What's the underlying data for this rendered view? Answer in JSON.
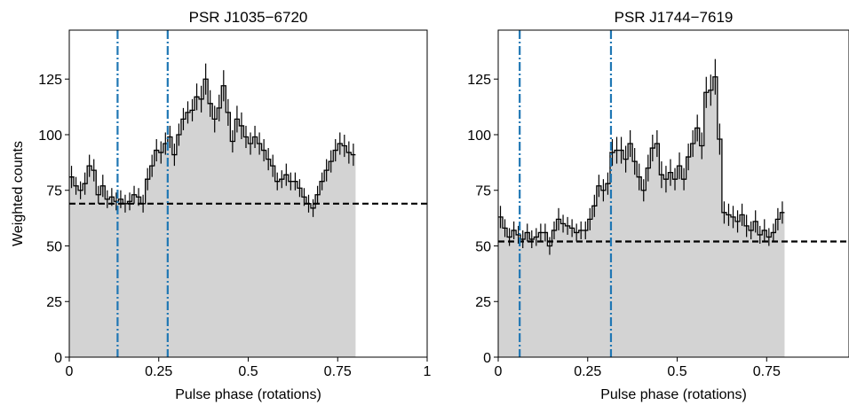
{
  "chart_data": [
    {
      "type": "histogram",
      "title": "PSR J1035−6720",
      "xlabel": "Pulse phase (rotations)",
      "ylabel": "Weighted counts",
      "xlim": [
        0,
        1
      ],
      "ylim": [
        0,
        147
      ],
      "xticks": [
        0,
        0.25,
        0.5,
        0.75,
        1
      ],
      "xtick_labels": [
        "0",
        "0.25",
        "0.5",
        "0.75",
        "1"
      ],
      "yticks": [
        0,
        25,
        50,
        75,
        100,
        125
      ],
      "ytick_labels": [
        "0",
        "25",
        "50",
        "75",
        "100",
        "125"
      ],
      "grid": false,
      "colors": {
        "fill": "#d3d3d3",
        "step": "#000000",
        "marker": "#1f77b4",
        "baseline": "#000000"
      },
      "marker_phases": [
        0.135,
        0.275
      ],
      "baseline": 69,
      "bin_width": 0.0125,
      "values": [
        81,
        77,
        75,
        78,
        86,
        84,
        73,
        77,
        71,
        72,
        70,
        71,
        69,
        70,
        73,
        72,
        69,
        80,
        86,
        93,
        92,
        96,
        99,
        91,
        100,
        107,
        110,
        111,
        117,
        116,
        125,
        114,
        107,
        112,
        122,
        110,
        97,
        107,
        104,
        99,
        96,
        99,
        96,
        93,
        89,
        86,
        79,
        80,
        82,
        79,
        79,
        76,
        72,
        69,
        67,
        73,
        79,
        84,
        88,
        93,
        96,
        95,
        92,
        91
      ],
      "errors": [
        5,
        4,
        4,
        5,
        5,
        5,
        4,
        5,
        4,
        4,
        4,
        4,
        4,
        4,
        4,
        4,
        4,
        5,
        5,
        5,
        5,
        5,
        5,
        5,
        5,
        5,
        5,
        5,
        6,
        6,
        7,
        6,
        6,
        6,
        7,
        6,
        5,
        6,
        6,
        5,
        5,
        5,
        5,
        5,
        5,
        5,
        4,
        4,
        5,
        4,
        4,
        4,
        4,
        4,
        4,
        4,
        4,
        5,
        5,
        5,
        5,
        5,
        5,
        5
      ]
    },
    {
      "type": "histogram",
      "title": "PSR J1744−7619",
      "xlabel": "Pulse phase (rotations)",
      "ylabel": "",
      "xlim": [
        0,
        0.98
      ],
      "ylim": [
        0,
        147
      ],
      "xticks": [
        0,
        0.25,
        0.5,
        0.75
      ],
      "xtick_labels": [
        "0",
        "0.25",
        "0.5",
        "0.75"
      ],
      "yticks": [
        0,
        25,
        50,
        75,
        100,
        125
      ],
      "ytick_labels": [
        "0",
        "25",
        "50",
        "75",
        "100",
        "125"
      ],
      "grid": false,
      "colors": {
        "fill": "#d3d3d3",
        "step": "#000000",
        "marker": "#1f77b4",
        "baseline": "#000000"
      },
      "marker_phases": [
        0.06,
        0.315
      ],
      "baseline": 52,
      "bin_width": 0.0125,
      "values": [
        63,
        58,
        54,
        57,
        55,
        53,
        56,
        53,
        54,
        56,
        56,
        50,
        57,
        62,
        60,
        59,
        58,
        56,
        57,
        57,
        62,
        68,
        77,
        75,
        78,
        92,
        93,
        93,
        89,
        96,
        88,
        81,
        75,
        85,
        94,
        96,
        82,
        80,
        83,
        80,
        86,
        80,
        90,
        96,
        103,
        95,
        119,
        120,
        126,
        98,
        65,
        64,
        63,
        61,
        64,
        59,
        57,
        61,
        55,
        57,
        54,
        56,
        62,
        65
      ],
      "errors": [
        5,
        4,
        4,
        4,
        4,
        4,
        4,
        4,
        4,
        4,
        4,
        4,
        4,
        5,
        4,
        4,
        4,
        4,
        4,
        4,
        5,
        5,
        5,
        5,
        5,
        6,
        6,
        6,
        6,
        6,
        6,
        6,
        5,
        6,
        6,
        6,
        6,
        6,
        6,
        5,
        6,
        5,
        6,
        6,
        6,
        6,
        7,
        7,
        8,
        7,
        5,
        5,
        5,
        5,
        5,
        5,
        4,
        5,
        4,
        5,
        4,
        4,
        5,
        5
      ]
    }
  ]
}
